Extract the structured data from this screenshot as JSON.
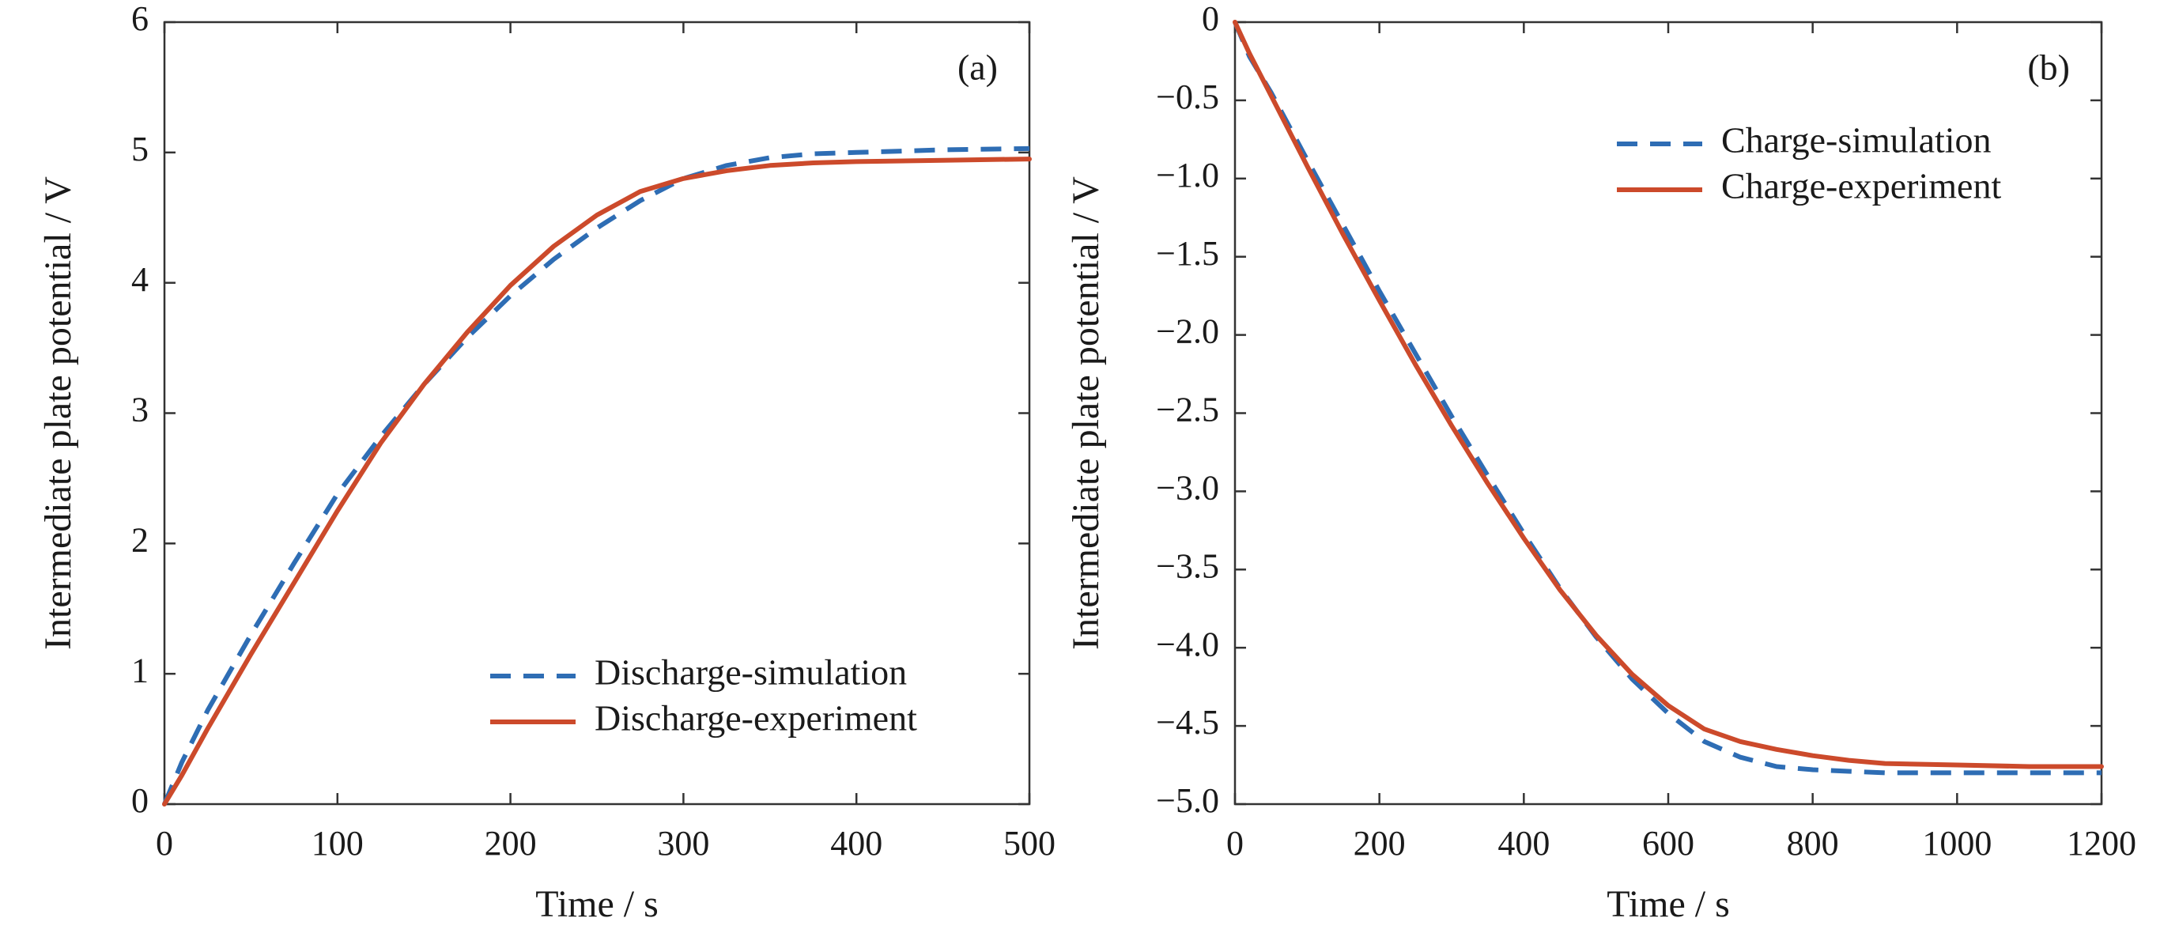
{
  "chart_data": [
    {
      "type": "line",
      "panel_label": "(a)",
      "xlabel": "Time / s",
      "ylabel": "Intermediate plate potential / V",
      "xlim": [
        0,
        500
      ],
      "ylim": [
        0,
        6
      ],
      "xticks": [
        0,
        100,
        200,
        300,
        400,
        500
      ],
      "xtick_labels": [
        "0",
        "100",
        "200",
        "300",
        "400",
        "500"
      ],
      "yticks": [
        0,
        1,
        2,
        3,
        4,
        5,
        6
      ],
      "ytick_labels": [
        "0",
        "1",
        "2",
        "3",
        "4",
        "5",
        "6"
      ],
      "grid": false,
      "legend_position": "bottom-right",
      "series": [
        {
          "name": "Discharge-simulation",
          "color": "#2e6db4",
          "style": "dashed",
          "x": [
            0,
            10,
            25,
            50,
            75,
            100,
            125,
            150,
            175,
            200,
            225,
            250,
            275,
            300,
            325,
            350,
            375,
            400,
            450,
            500
          ],
          "y": [
            0,
            0.32,
            0.72,
            1.3,
            1.85,
            2.38,
            2.82,
            3.22,
            3.58,
            3.9,
            4.18,
            4.42,
            4.63,
            4.8,
            4.9,
            4.96,
            4.99,
            5.0,
            5.02,
            5.03
          ]
        },
        {
          "name": "Discharge-experiment",
          "color": "#cc4a2b",
          "style": "solid",
          "x": [
            0,
            10,
            25,
            50,
            75,
            100,
            125,
            150,
            175,
            200,
            225,
            250,
            275,
            300,
            325,
            350,
            375,
            400,
            450,
            500
          ],
          "y": [
            0,
            0.22,
            0.58,
            1.15,
            1.7,
            2.25,
            2.77,
            3.22,
            3.62,
            3.98,
            4.28,
            4.52,
            4.7,
            4.8,
            4.86,
            4.9,
            4.92,
            4.93,
            4.94,
            4.95
          ]
        }
      ]
    },
    {
      "type": "line",
      "panel_label": "(b)",
      "xlabel": "Time / s",
      "ylabel": "Intermediate plate potential / V",
      "xlim": [
        0,
        1200
      ],
      "ylim": [
        -5.0,
        0
      ],
      "xticks": [
        0,
        200,
        400,
        600,
        800,
        1000,
        1200
      ],
      "xtick_labels": [
        "0",
        "200",
        "400",
        "600",
        "800",
        "1000",
        "1200"
      ],
      "yticks": [
        0,
        -0.5,
        -1.0,
        -1.5,
        -2.0,
        -2.5,
        -3.0,
        -3.5,
        -4.0,
        -4.5,
        -5.0
      ],
      "ytick_labels": [
        "0",
        "−0.5",
        "−1.0",
        "−1.5",
        "−2.0",
        "−2.5",
        "−3.0",
        "−3.5",
        "−4.0",
        "−4.5",
        "−5.0"
      ],
      "grid": false,
      "legend_position": "top-right",
      "series": [
        {
          "name": "Charge-simulation",
          "color": "#2e6db4",
          "style": "dashed",
          "x": [
            0,
            20,
            50,
            100,
            150,
            200,
            250,
            300,
            350,
            400,
            450,
            500,
            550,
            600,
            650,
            700,
            750,
            800,
            850,
            900,
            1000,
            1100,
            1200
          ],
          "y": [
            0,
            -0.22,
            -0.45,
            -0.88,
            -1.3,
            -1.72,
            -2.12,
            -2.52,
            -2.9,
            -3.27,
            -3.62,
            -3.93,
            -4.2,
            -4.42,
            -4.6,
            -4.7,
            -4.76,
            -4.78,
            -4.79,
            -4.8,
            -4.8,
            -4.8,
            -4.8
          ]
        },
        {
          "name": "Charge-experiment",
          "color": "#cc4a2b",
          "style": "solid",
          "x": [
            0,
            20,
            50,
            100,
            150,
            200,
            250,
            300,
            350,
            400,
            450,
            500,
            550,
            600,
            650,
            700,
            750,
            800,
            850,
            900,
            1000,
            1100,
            1200
          ],
          "y": [
            0,
            -0.2,
            -0.47,
            -0.92,
            -1.36,
            -1.78,
            -2.19,
            -2.58,
            -2.95,
            -3.3,
            -3.63,
            -3.92,
            -4.17,
            -4.37,
            -4.52,
            -4.6,
            -4.65,
            -4.69,
            -4.72,
            -4.74,
            -4.75,
            -4.76,
            -4.76
          ]
        }
      ]
    }
  ]
}
